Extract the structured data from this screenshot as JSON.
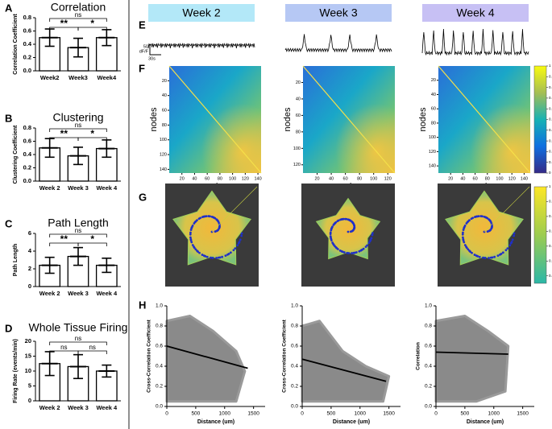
{
  "chart_data": [
    {
      "type": "bar",
      "panel": "A",
      "title": "Correlation",
      "ylabel": "Correlation Coefficient",
      "categories": [
        "Week2",
        "Week3",
        "Week4"
      ],
      "values": [
        0.5,
        0.35,
        0.5
      ],
      "errors": [
        0.13,
        0.14,
        0.12
      ],
      "ylim": [
        0,
        0.8
      ],
      "yticks": [
        {
          "value": 0,
          "label": "0.0"
        },
        0.2,
        0.4,
        0.6,
        0.8
      ],
      "significance": [
        {
          "from": 0,
          "to": 2,
          "label": "ns"
        },
        {
          "from": 0,
          "to": 1,
          "label": "**"
        },
        {
          "from": 1,
          "to": 2,
          "label": "*"
        }
      ]
    },
    {
      "type": "bar",
      "panel": "B",
      "title": "Clustering",
      "ylabel": "Clustering Coefficient",
      "categories": [
        "Week 2",
        "Week 3",
        "Week 4"
      ],
      "values": [
        0.5,
        0.38,
        0.49
      ],
      "errors": [
        0.14,
        0.13,
        0.13
      ],
      "ylim": [
        0,
        0.8
      ],
      "yticks": [
        {
          "value": 0,
          "label": "0.0"
        },
        0.2,
        0.4,
        0.6,
        0.8
      ],
      "significance": [
        {
          "from": 0,
          "to": 2,
          "label": "ns"
        },
        {
          "from": 0,
          "to": 1,
          "label": "**"
        },
        {
          "from": 1,
          "to": 2,
          "label": "*"
        }
      ]
    },
    {
      "type": "bar",
      "panel": "C",
      "title": "Path Length",
      "ylabel": "Path Length",
      "categories": [
        "Week 2",
        "Week 3",
        "Week 4"
      ],
      "values": [
        2.4,
        3.4,
        2.4
      ],
      "errors": [
        0.9,
        1.0,
        0.8
      ],
      "ylim": [
        0,
        6
      ],
      "yticks": [
        0,
        2,
        4,
        6
      ],
      "significance": [
        {
          "from": 0,
          "to": 2,
          "label": "ns"
        },
        {
          "from": 0,
          "to": 1,
          "label": "**"
        },
        {
          "from": 1,
          "to": 2,
          "label": "*"
        }
      ]
    },
    {
      "type": "bar",
      "panel": "D",
      "title": "Whole Tissue Firing",
      "ylabel": "Firing Rate (events/min)",
      "categories": [
        "Week 2",
        "Week 3",
        "Week 4"
      ],
      "values": [
        12.5,
        11.5,
        10
      ],
      "errors": [
        4,
        4,
        2
      ],
      "ylim": [
        0,
        20
      ],
      "yticks": [
        0,
        5,
        10,
        15,
        20
      ],
      "significance": [
        {
          "from": 0,
          "to": 2,
          "label": "ns"
        },
        {
          "from": 0,
          "to": 1,
          "label": "ns"
        },
        {
          "from": 1,
          "to": 2,
          "label": "ns"
        }
      ]
    },
    {
      "type": "scatter",
      "ylabel": "Cross-Correlation Coefficient",
      "xlabel": "Distance (um)",
      "x": [
        0,
        1400
      ],
      "values": [
        0.6,
        0.38
      ],
      "xlim": [
        0,
        1700
      ],
      "ylim": [
        0,
        1
      ],
      "xticks": [
        0,
        500,
        1000,
        1500
      ],
      "yticks": [
        {
          "value": 0,
          "label": "0.0"
        },
        0.2,
        0.4,
        0.6,
        0.8,
        {
          "value": 1,
          "label": "1.0"
        }
      ]
    },
    {
      "type": "scatter",
      "ylabel": "Cross-Correlation Coefficient",
      "xlabel": "Distance (um)",
      "x": [
        0,
        1450
      ],
      "values": [
        0.47,
        0.25
      ],
      "xlim": [
        0,
        1700
      ],
      "ylim": [
        0,
        1
      ],
      "xticks": [
        0,
        500,
        1000,
        1500
      ],
      "yticks": [
        {
          "value": 0,
          "label": "0.0"
        },
        0.2,
        0.4,
        0.6,
        0.8,
        {
          "value": 1,
          "label": "1.0"
        }
      ]
    },
    {
      "type": "scatter",
      "ylabel": "Correlation",
      "xlabel": "Distance (um)",
      "x": [
        0,
        1250
      ],
      "values": [
        0.54,
        0.52
      ],
      "xlim": [
        0,
        1700
      ],
      "ylim": [
        0,
        1
      ],
      "xticks": [
        0,
        500,
        1000,
        1500
      ],
      "yticks": [
        {
          "value": 0,
          "label": "0.0"
        },
        0.2,
        0.4,
        0.6,
        0.8,
        {
          "value": 1,
          "label": "1.0"
        }
      ]
    }
  ],
  "figure": {
    "weeks": [
      "Week 2",
      "Week 3",
      "Week 4"
    ],
    "panels": [
      "E",
      "F",
      "G",
      "H"
    ],
    "scale_y": "50",
    "scale_unit": "dF/F",
    "scale_x": "30s",
    "heatmaps": [
      {
        "xlabel": "nodes",
        "ylabel": "nodes",
        "lim": [
          0,
          145
        ],
        "xticks": [
          20,
          40,
          60,
          80,
          100,
          120,
          140
        ],
        "yticks": [
          20,
          40,
          60,
          80,
          100,
          120,
          140
        ]
      },
      {
        "xlabel": "nodes",
        "ylabel": "nodes",
        "lim": [
          0,
          130
        ],
        "xticks": [
          20,
          40,
          60,
          80,
          100,
          120
        ],
        "yticks": [
          20,
          40,
          60,
          80,
          100,
          120
        ]
      },
      {
        "xlabel": "nodes",
        "ylabel": "nodes",
        "lim": [
          0,
          150
        ],
        "xticks": [
          20,
          40,
          60,
          80,
          100,
          120,
          140
        ],
        "yticks": [
          20,
          40,
          60,
          80,
          100,
          120,
          140
        ]
      }
    ],
    "heatmap_colorbar": {
      "lim": [
        0,
        1
      ],
      "ticks": [
        0,
        0.1,
        0.2,
        0.3,
        0.4,
        0.5,
        0.6,
        0.7,
        0.8,
        0.9,
        1
      ]
    },
    "network_colorbar": {
      "lim": [
        0.35,
        1
      ],
      "ticks": [
        0.4,
        0.5,
        0.6,
        0.7,
        0.8,
        0.9,
        1
      ]
    }
  }
}
